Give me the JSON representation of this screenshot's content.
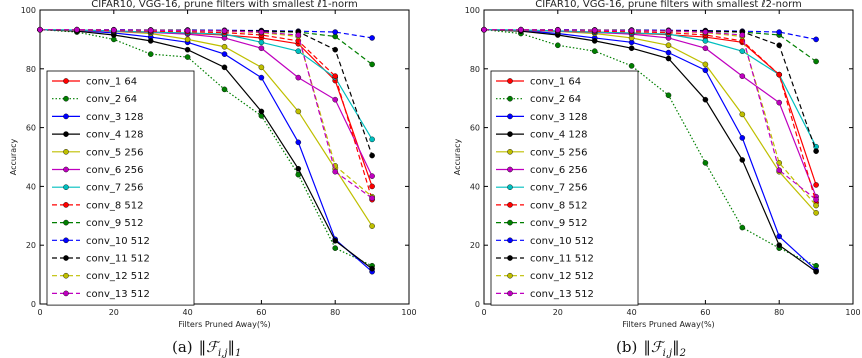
{
  "chart_data": [
    {
      "type": "line",
      "title": "CIFAR10, VGG-16, prune filters with smallest ℓ1-norm",
      "xlabel": "Filters Pruned Away(%)",
      "ylabel": "Accuracy",
      "xlim": [
        0,
        100
      ],
      "ylim": [
        0,
        100
      ],
      "xticks": [
        0,
        20,
        40,
        60,
        80,
        100
      ],
      "yticks": [
        0,
        20,
        40,
        60,
        80,
        100
      ],
      "grid": false,
      "legend_position": "left",
      "caption_label": "(a)",
      "caption_norm_sub": "1",
      "x": [
        0,
        10,
        20,
        30,
        40,
        50,
        60,
        70,
        80,
        90
      ],
      "series": [
        {
          "name": "conv_1 64",
          "color": "#ff0000",
          "style": "solid",
          "values": [
            93.3,
            93.1,
            92.8,
            92.5,
            92.1,
            91.5,
            90.5,
            88.5,
            76.0,
            40.0
          ]
        },
        {
          "name": "conv_2 64",
          "color": "#007f00",
          "style": "dotted",
          "values": [
            93.3,
            92.5,
            90.0,
            85.0,
            84.0,
            73.0,
            64.0,
            44.0,
            19.0,
            13.0
          ]
        },
        {
          "name": "conv_3 128",
          "color": "#0000ff",
          "style": "solid",
          "values": [
            93.3,
            93.0,
            92.2,
            90.8,
            89.0,
            85.0,
            77.0,
            55.0,
            22.0,
            11.0
          ]
        },
        {
          "name": "conv_4 128",
          "color": "#000000",
          "style": "solid",
          "values": [
            93.3,
            92.8,
            91.5,
            89.5,
            86.5,
            80.5,
            65.5,
            46.0,
            21.5,
            12.0
          ]
        },
        {
          "name": "conv_5 256",
          "color": "#bfbf00",
          "style": "solid",
          "values": [
            93.3,
            93.1,
            92.7,
            92.0,
            90.0,
            87.5,
            80.5,
            65.5,
            46.0,
            26.5
          ]
        },
        {
          "name": "conv_6 256",
          "color": "#bf00bf",
          "style": "solid",
          "values": [
            93.3,
            93.1,
            92.8,
            92.4,
            91.8,
            90.5,
            87.0,
            77.0,
            69.5,
            43.5
          ]
        },
        {
          "name": "conv_7 256",
          "color": "#00bfbf",
          "style": "solid",
          "values": [
            93.3,
            93.2,
            92.9,
            92.5,
            92.2,
            91.8,
            89.0,
            86.0,
            77.0,
            56.0
          ]
        },
        {
          "name": "conv_8 512",
          "color": "#ff0000",
          "style": "dashed",
          "values": [
            93.3,
            93.2,
            93.0,
            92.8,
            92.6,
            92.3,
            91.5,
            89.5,
            77.5,
            35.5
          ]
        },
        {
          "name": "conv_9 512",
          "color": "#007f00",
          "style": "dashed",
          "values": [
            93.3,
            93.3,
            93.2,
            93.1,
            93.0,
            92.9,
            92.7,
            92.5,
            91.0,
            81.5
          ]
        },
        {
          "name": "conv_10 512",
          "color": "#0000ff",
          "style": "dashed",
          "values": [
            93.3,
            93.3,
            93.3,
            93.2,
            93.2,
            93.1,
            93.0,
            92.8,
            92.5,
            90.5
          ]
        },
        {
          "name": "conv_11 512",
          "color": "#000000",
          "style": "dashed",
          "values": [
            93.3,
            93.3,
            93.2,
            93.2,
            93.1,
            93.0,
            92.9,
            92.6,
            86.5,
            50.5
          ]
        },
        {
          "name": "conv_12 512",
          "color": "#bfbf00",
          "style": "dashed",
          "values": [
            93.3,
            93.3,
            93.2,
            93.1,
            93.0,
            92.8,
            92.3,
            91.0,
            47.0,
            36.5
          ]
        },
        {
          "name": "conv_13 512",
          "color": "#bf00bf",
          "style": "dashed",
          "values": [
            93.3,
            93.3,
            93.2,
            93.1,
            93.0,
            92.9,
            92.5,
            91.5,
            45.0,
            36.0
          ]
        }
      ]
    },
    {
      "type": "line",
      "title": "CIFAR10, VGG-16, prune filters with smallest ℓ2-norm",
      "xlabel": "Filters Pruned Away(%)",
      "ylabel": "Accuracy",
      "xlim": [
        0,
        100
      ],
      "ylim": [
        0,
        100
      ],
      "xticks": [
        0,
        20,
        40,
        60,
        80,
        100
      ],
      "yticks": [
        0,
        20,
        40,
        60,
        80,
        100
      ],
      "grid": false,
      "legend_position": "left",
      "caption_label": "(b)",
      "caption_norm_sub": "2",
      "x": [
        0,
        10,
        20,
        30,
        40,
        50,
        60,
        70,
        80,
        90
      ],
      "series": [
        {
          "name": "conv_1 64",
          "color": "#ff0000",
          "style": "solid",
          "values": [
            93.3,
            93.1,
            92.8,
            92.5,
            92.1,
            91.6,
            90.8,
            89.0,
            78.0,
            40.5
          ]
        },
        {
          "name": "conv_2 64",
          "color": "#007f00",
          "style": "dotted",
          "values": [
            93.3,
            92.0,
            88.0,
            86.0,
            81.0,
            71.0,
            48.0,
            26.0,
            19.0,
            13.0
          ]
        },
        {
          "name": "conv_3 128",
          "color": "#0000ff",
          "style": "solid",
          "values": [
            93.3,
            93.0,
            92.0,
            90.5,
            89.0,
            85.5,
            79.5,
            56.5,
            23.0,
            11.5
          ]
        },
        {
          "name": "conv_4 128",
          "color": "#000000",
          "style": "solid",
          "values": [
            93.3,
            92.8,
            91.5,
            89.5,
            87.0,
            83.5,
            69.5,
            49.0,
            20.0,
            11.0
          ]
        },
        {
          "name": "conv_5 256",
          "color": "#bfbf00",
          "style": "solid",
          "values": [
            93.3,
            93.1,
            92.7,
            92.0,
            90.5,
            88.0,
            81.5,
            64.5,
            45.0,
            31.0
          ]
        },
        {
          "name": "conv_6 256",
          "color": "#bf00bf",
          "style": "solid",
          "values": [
            93.3,
            93.1,
            92.8,
            92.4,
            91.8,
            90.5,
            87.0,
            77.5,
            68.5,
            36.5
          ]
        },
        {
          "name": "conv_7 256",
          "color": "#00bfbf",
          "style": "solid",
          "values": [
            93.3,
            93.2,
            92.9,
            92.5,
            92.2,
            91.8,
            89.5,
            86.0,
            78.0,
            53.5
          ]
        },
        {
          "name": "conv_8 512",
          "color": "#ff0000",
          "style": "dashed",
          "values": [
            93.3,
            93.2,
            93.0,
            92.8,
            92.6,
            92.3,
            91.5,
            89.5,
            78.0,
            34.5
          ]
        },
        {
          "name": "conv_9 512",
          "color": "#007f00",
          "style": "dashed",
          "values": [
            93.3,
            93.3,
            93.2,
            93.1,
            93.0,
            92.9,
            92.7,
            92.5,
            91.5,
            82.5
          ]
        },
        {
          "name": "conv_10 512",
          "color": "#0000ff",
          "style": "dashed",
          "values": [
            93.3,
            93.3,
            93.3,
            93.2,
            93.2,
            93.1,
            93.0,
            92.8,
            92.5,
            90.0
          ]
        },
        {
          "name": "conv_11 512",
          "color": "#000000",
          "style": "dashed",
          "values": [
            93.3,
            93.3,
            93.2,
            93.2,
            93.1,
            93.0,
            92.9,
            92.6,
            88.0,
            52.0
          ]
        },
        {
          "name": "conv_12 512",
          "color": "#bfbf00",
          "style": "dashed",
          "values": [
            93.3,
            93.3,
            93.2,
            93.1,
            93.0,
            92.8,
            92.3,
            91.0,
            48.0,
            33.5
          ]
        },
        {
          "name": "conv_13 512",
          "color": "#bf00bf",
          "style": "dashed",
          "values": [
            93.3,
            93.3,
            93.2,
            93.1,
            93.0,
            92.9,
            92.5,
            91.5,
            45.5,
            35.5
          ]
        }
      ]
    }
  ]
}
